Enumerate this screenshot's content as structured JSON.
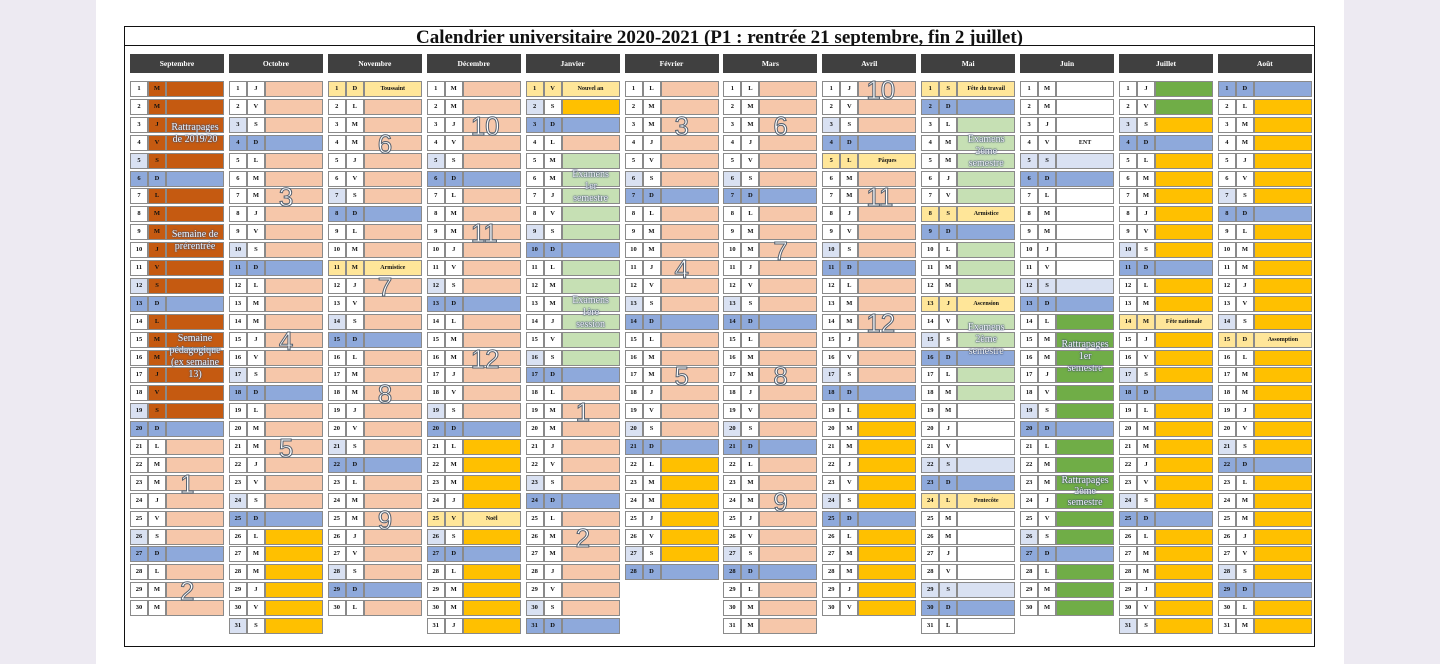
{
  "title": "Calendrier universitaire 2020-2021 (P1 : rentrée 21 septembre, fin 2 juillet)",
  "colors": {
    "W": "#ffffff",
    "P": "#f6c7aa",
    "B": "#8ea9db",
    "G": "#c6e0b4",
    "Y": "#ffc000",
    "LY": "#ffe699",
    "R": "#c55a11",
    "DG": "#70ad47",
    "LB": "#d9e1f2"
  },
  "months": [
    {
      "name": "Septembre",
      "days": [
        "M",
        "M",
        "J",
        "V",
        "S",
        "D",
        "L",
        "M",
        "M",
        "J",
        "V",
        "S",
        "D",
        "L",
        "M",
        "M",
        "J",
        "V",
        "S",
        "D",
        "L",
        "M",
        "M",
        "J",
        "V",
        "S",
        "D",
        "L",
        "M",
        "M"
      ],
      "cols": [
        "R",
        "R",
        "R",
        "R",
        "R",
        "B",
        "R",
        "R",
        "R",
        "R",
        "R",
        "R",
        "B",
        "R",
        "R",
        "R",
        "R",
        "R",
        "R",
        "B",
        "P",
        "P",
        "P",
        "P",
        "P",
        "P",
        "B",
        "P",
        "P",
        "P"
      ],
      "spans": [
        {
          "from": 3,
          "to": 4,
          "text": "Rattrapages\nde 2019/20"
        },
        {
          "from": 9,
          "to": 10,
          "text": "Semaine de\nprérentrée"
        },
        {
          "from": 15,
          "to": 17,
          "text": "Semaine\npédagogique\n(ex semaine\n13)"
        }
      ],
      "notes": {},
      "weeks": [
        {
          "day": 23,
          "n": "1"
        },
        {
          "day": 29,
          "n": "2"
        }
      ]
    },
    {
      "name": "Octobre",
      "days": [
        "J",
        "V",
        "S",
        "D",
        "L",
        "M",
        "M",
        "J",
        "V",
        "S",
        "D",
        "L",
        "M",
        "M",
        "J",
        "V",
        "S",
        "D",
        "L",
        "M",
        "M",
        "J",
        "V",
        "S",
        "D",
        "L",
        "M",
        "M",
        "J",
        "V",
        "S"
      ],
      "cols": [
        "P",
        "P",
        "P",
        "B",
        "P",
        "P",
        "P",
        "P",
        "P",
        "P",
        "B",
        "P",
        "P",
        "P",
        "P",
        "P",
        "P",
        "B",
        "P",
        "P",
        "P",
        "P",
        "P",
        "P",
        "B",
        "Y",
        "Y",
        "Y",
        "Y",
        "Y",
        "Y"
      ],
      "spans": [],
      "notes": {},
      "weeks": [
        {
          "day": 7,
          "n": "3"
        },
        {
          "day": 15,
          "n": "4"
        },
        {
          "day": 21,
          "n": "5"
        }
      ]
    },
    {
      "name": "Novembre",
      "days": [
        "D",
        "L",
        "M",
        "M",
        "J",
        "V",
        "S",
        "D",
        "L",
        "M",
        "M",
        "J",
        "V",
        "S",
        "D",
        "L",
        "M",
        "M",
        "J",
        "V",
        "S",
        "D",
        "L",
        "M",
        "M",
        "J",
        "V",
        "S",
        "D",
        "L"
      ],
      "cols": [
        "LY",
        "P",
        "P",
        "P",
        "P",
        "P",
        "P",
        "B",
        "P",
        "P",
        "LY",
        "P",
        "P",
        "P",
        "B",
        "P",
        "P",
        "P",
        "P",
        "P",
        "P",
        "B",
        "P",
        "P",
        "P",
        "P",
        "P",
        "P",
        "B",
        "P"
      ],
      "spans": [],
      "notes": {
        "1": "Toussaint",
        "11": "Armistice"
      },
      "weeks": [
        {
          "day": 4,
          "n": "6"
        },
        {
          "day": 12,
          "n": "7"
        },
        {
          "day": 18,
          "n": "8"
        },
        {
          "day": 25,
          "n": "9"
        }
      ]
    },
    {
      "name": "Décembre",
      "days": [
        "M",
        "M",
        "J",
        "V",
        "S",
        "D",
        "L",
        "M",
        "M",
        "J",
        "V",
        "S",
        "D",
        "L",
        "M",
        "M",
        "J",
        "V",
        "S",
        "D",
        "L",
        "M",
        "M",
        "J",
        "V",
        "S",
        "D",
        "L",
        "M",
        "M",
        "J"
      ],
      "cols": [
        "P",
        "P",
        "P",
        "P",
        "P",
        "B",
        "P",
        "P",
        "P",
        "P",
        "P",
        "P",
        "B",
        "P",
        "P",
        "P",
        "P",
        "P",
        "P",
        "B",
        "Y",
        "Y",
        "Y",
        "Y",
        "LY",
        "Y",
        "B",
        "Y",
        "Y",
        "Y",
        "Y"
      ],
      "spans": [],
      "notes": {
        "25": "Noël"
      },
      "weeks": [
        {
          "day": 3,
          "n": "10"
        },
        {
          "day": 9,
          "n": "11"
        },
        {
          "day": 16,
          "n": "12"
        }
      ]
    },
    {
      "name": "Janvier",
      "days": [
        "V",
        "S",
        "D",
        "L",
        "M",
        "M",
        "J",
        "V",
        "S",
        "D",
        "L",
        "M",
        "M",
        "J",
        "V",
        "S",
        "D",
        "L",
        "M",
        "M",
        "J",
        "V",
        "S",
        "D",
        "L",
        "M",
        "M",
        "J",
        "V",
        "S",
        "D"
      ],
      "cols": [
        "LY",
        "Y",
        "B",
        "P",
        "G",
        "G",
        "G",
        "G",
        "G",
        "B",
        "G",
        "G",
        "G",
        "G",
        "G",
        "G",
        "B",
        "P",
        "P",
        "P",
        "P",
        "P",
        "P",
        "B",
        "P",
        "P",
        "P",
        "P",
        "P",
        "P",
        "B"
      ],
      "spans": [
        {
          "from": 5,
          "to": 8,
          "text": "Examens\n1er\nsemestre"
        },
        {
          "from": 11,
          "to": 16,
          "text": "Examens\n1ère\nsession"
        }
      ],
      "notes": {
        "1": "Nouvel an"
      },
      "weeks": [
        {
          "day": 19,
          "n": "1"
        },
        {
          "day": 26,
          "n": "2"
        }
      ]
    },
    {
      "name": "Février",
      "days": [
        "L",
        "M",
        "M",
        "J",
        "V",
        "S",
        "D",
        "L",
        "M",
        "M",
        "J",
        "V",
        "S",
        "D",
        "L",
        "M",
        "M",
        "J",
        "V",
        "S",
        "D",
        "L",
        "M",
        "M",
        "J",
        "V",
        "S",
        "D"
      ],
      "cols": [
        "P",
        "P",
        "P",
        "P",
        "P",
        "P",
        "B",
        "P",
        "P",
        "P",
        "P",
        "P",
        "P",
        "B",
        "P",
        "P",
        "P",
        "P",
        "P",
        "P",
        "B",
        "Y",
        "Y",
        "Y",
        "Y",
        "Y",
        "Y",
        "B"
      ],
      "spans": [],
      "notes": {},
      "weeks": [
        {
          "day": 3,
          "n": "3"
        },
        {
          "day": 11,
          "n": "4"
        },
        {
          "day": 17,
          "n": "5"
        }
      ]
    },
    {
      "name": "Mars",
      "days": [
        "L",
        "M",
        "M",
        "J",
        "V",
        "S",
        "D",
        "L",
        "M",
        "M",
        "J",
        "V",
        "S",
        "D",
        "L",
        "M",
        "M",
        "J",
        "V",
        "S",
        "D",
        "L",
        "M",
        "M",
        "J",
        "V",
        "S",
        "D",
        "L",
        "M",
        "M"
      ],
      "cols": [
        "P",
        "P",
        "P",
        "P",
        "P",
        "P",
        "B",
        "P",
        "P",
        "P",
        "P",
        "P",
        "P",
        "B",
        "P",
        "P",
        "P",
        "P",
        "P",
        "P",
        "B",
        "P",
        "P",
        "P",
        "P",
        "P",
        "P",
        "B",
        "P",
        "P",
        "P"
      ],
      "spans": [],
      "notes": {},
      "weeks": [
        {
          "day": 3,
          "n": "6"
        },
        {
          "day": 10,
          "n": "7"
        },
        {
          "day": 17,
          "n": "8"
        },
        {
          "day": 24,
          "n": "9"
        }
      ]
    },
    {
      "name": "Avril",
      "days": [
        "J",
        "V",
        "S",
        "D",
        "L",
        "M",
        "M",
        "J",
        "V",
        "S",
        "D",
        "L",
        "M",
        "M",
        "J",
        "V",
        "S",
        "D",
        "L",
        "M",
        "M",
        "J",
        "V",
        "S",
        "D",
        "L",
        "M",
        "M",
        "J",
        "V"
      ],
      "cols": [
        "P",
        "P",
        "P",
        "B",
        "LY",
        "P",
        "P",
        "P",
        "P",
        "P",
        "B",
        "P",
        "P",
        "P",
        "P",
        "P",
        "P",
        "B",
        "Y",
        "Y",
        "Y",
        "Y",
        "Y",
        "Y",
        "B",
        "Y",
        "Y",
        "Y",
        "Y",
        "Y"
      ],
      "spans": [],
      "notes": {
        "5": "Pâques"
      },
      "weeks": [
        {
          "day": 1,
          "n": "10"
        },
        {
          "day": 7,
          "n": "11"
        },
        {
          "day": 14,
          "n": "12"
        }
      ]
    },
    {
      "name": "Mai",
      "days": [
        "S",
        "D",
        "L",
        "M",
        "M",
        "J",
        "V",
        "S",
        "D",
        "L",
        "M",
        "M",
        "J",
        "V",
        "S",
        "D",
        "L",
        "M",
        "M",
        "J",
        "V",
        "S",
        "D",
        "L",
        "M",
        "M",
        "J",
        "V",
        "S",
        "D",
        "L"
      ],
      "cols": [
        "LY",
        "B",
        "G",
        "G",
        "G",
        "G",
        "G",
        "LY",
        "B",
        "G",
        "G",
        "G",
        "LY",
        "G",
        "G",
        "B",
        "G",
        "G",
        "W",
        "W",
        "W",
        "LB",
        "B",
        "LY",
        "W",
        "W",
        "W",
        "W",
        "LB",
        "B",
        "W"
      ],
      "spans": [
        {
          "from": 3,
          "to": 6,
          "text": "Examens\n2ème\nsemestre"
        },
        {
          "from": 14,
          "to": 16,
          "text": "Examens\n2ème\nsemestre"
        }
      ],
      "notes": {
        "1": "Fête du travail",
        "8": "Armistice",
        "13": "Ascension",
        "24": "Pentecôte"
      },
      "weeks": []
    },
    {
      "name": "Juin",
      "days": [
        "M",
        "M",
        "J",
        "V",
        "S",
        "D",
        "L",
        "M",
        "M",
        "J",
        "V",
        "S",
        "D",
        "L",
        "M",
        "M",
        "J",
        "V",
        "S",
        "D",
        "L",
        "M",
        "M",
        "J",
        "V",
        "S",
        "D",
        "L",
        "M",
        "M"
      ],
      "cols": [
        "W",
        "W",
        "W",
        "W",
        "LB",
        "B",
        "W",
        "W",
        "W",
        "W",
        "W",
        "LB",
        "B",
        "DG",
        "DG",
        "DG",
        "DG",
        "DG",
        "DG",
        "B",
        "DG",
        "DG",
        "DG",
        "DG",
        "DG",
        "DG",
        "B",
        "DG",
        "DG",
        "DG"
      ],
      "spans": [
        {
          "from": 15,
          "to": 17,
          "text": "Rattrapages\n1er\nsemestre"
        },
        {
          "from": 23,
          "to": 24,
          "text": "Rattrapages\n2ème\nsemestre"
        }
      ],
      "notes": {
        "4": "ENT"
      },
      "weeks": []
    },
    {
      "name": "Juillet",
      "days": [
        "J",
        "V",
        "S",
        "D",
        "L",
        "M",
        "M",
        "J",
        "V",
        "S",
        "D",
        "L",
        "M",
        "M",
        "J",
        "V",
        "S",
        "D",
        "L",
        "M",
        "M",
        "J",
        "V",
        "S",
        "D",
        "L",
        "M",
        "M",
        "J",
        "V",
        "S"
      ],
      "cols": [
        "DG",
        "DG",
        "Y",
        "B",
        "Y",
        "Y",
        "Y",
        "Y",
        "Y",
        "Y",
        "B",
        "Y",
        "Y",
        "LY",
        "Y",
        "Y",
        "Y",
        "B",
        "Y",
        "Y",
        "Y",
        "Y",
        "Y",
        "Y",
        "B",
        "Y",
        "Y",
        "Y",
        "Y",
        "Y",
        "Y"
      ],
      "spans": [],
      "notes": {
        "14": "Fête nationale"
      },
      "weeks": []
    },
    {
      "name": "Août",
      "days": [
        "D",
        "L",
        "M",
        "M",
        "J",
        "V",
        "S",
        "D",
        "L",
        "M",
        "M",
        "J",
        "V",
        "S",
        "D",
        "L",
        "M",
        "M",
        "J",
        "V",
        "S",
        "D",
        "L",
        "M",
        "M",
        "J",
        "V",
        "S",
        "D",
        "L",
        "M"
      ],
      "cols": [
        "B",
        "Y",
        "Y",
        "Y",
        "Y",
        "Y",
        "Y",
        "B",
        "Y",
        "Y",
        "Y",
        "Y",
        "Y",
        "Y",
        "LY",
        "Y",
        "Y",
        "Y",
        "Y",
        "Y",
        "Y",
        "B",
        "Y",
        "Y",
        "Y",
        "Y",
        "Y",
        "Y",
        "B",
        "Y",
        "Y"
      ],
      "spans": [],
      "notes": {
        "15": "Assomption"
      },
      "weeks": []
    }
  ]
}
